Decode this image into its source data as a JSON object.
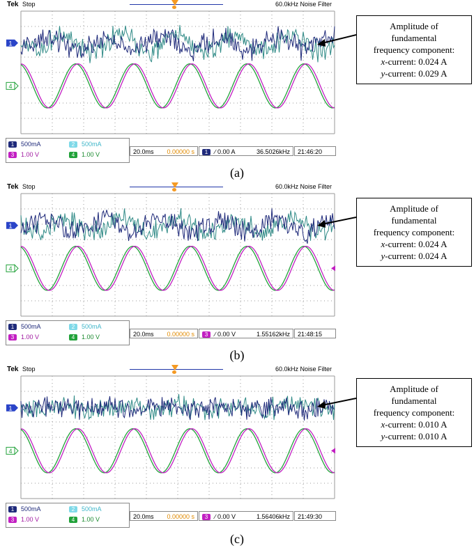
{
  "panels": [
    {
      "caption": "(a)",
      "topbar": {
        "brand": "Tek",
        "state": "Stop",
        "filter": "60.0kHz  Noise Filter"
      },
      "channels": {
        "ch1": {
          "badge": "1",
          "label": "500mA"
        },
        "ch2": {
          "badge": "2",
          "label": "500mA"
        },
        "ch3": {
          "badge": "3",
          "label": "1.00 V"
        },
        "ch4": {
          "badge": "4",
          "label": "1.00 V"
        }
      },
      "timebase": "20.0ms",
      "position": "0.00000 s",
      "trigger": {
        "badge": "1",
        "level": "∕ 0.00 A"
      },
      "frequency": "36.5026kHz",
      "time": "21:46:20",
      "markers": {
        "current": "1",
        "voltage": "4"
      },
      "callout": {
        "l1": "Amplitude of",
        "l2": "fundamental",
        "l3": "frequency component:",
        "x_prefix": "x",
        "x_text": "-current: 0.024 A",
        "y_prefix": "y",
        "y_text": "-current: 0.029 A"
      }
    },
    {
      "caption": "(b)",
      "topbar": {
        "brand": "Tek",
        "state": "Stop",
        "filter": "60.0kHz  Noise Filter"
      },
      "channels": {
        "ch1": {
          "badge": "1",
          "label": "500mA"
        },
        "ch2": {
          "badge": "2",
          "label": "500mA"
        },
        "ch3": {
          "badge": "3",
          "label": "1.00 V"
        },
        "ch4": {
          "badge": "4",
          "label": "1.00 V"
        }
      },
      "timebase": "20.0ms",
      "position": "0.00000 s",
      "trigger": {
        "badge": "3",
        "level": "∕ 0.00 V"
      },
      "frequency": "1.55162kHz",
      "time": "21:48:15",
      "markers": {
        "current": "1",
        "voltage": "4"
      },
      "callout": {
        "l1": "Amplitude of",
        "l2": "fundamental",
        "l3": "frequency component:",
        "x_prefix": "x",
        "x_text": "-current: 0.024 A",
        "y_prefix": "y",
        "y_text": "-current: 0.024 A"
      }
    },
    {
      "caption": "(c)",
      "topbar": {
        "brand": "Tek",
        "state": "Stop",
        "filter": "60.0kHz  Noise Filter"
      },
      "channels": {
        "ch1": {
          "badge": "1",
          "label": "500mA"
        },
        "ch2": {
          "badge": "2",
          "label": "500mA"
        },
        "ch3": {
          "badge": "3",
          "label": "1.00 V"
        },
        "ch4": {
          "badge": "4",
          "label": "1.00 V"
        }
      },
      "timebase": "20.0ms",
      "position": "0.00000 s",
      "trigger": {
        "badge": "3",
        "level": "∕ 0.00 V"
      },
      "frequency": "1.56406kHz",
      "time": "21:49:30",
      "markers": {
        "current": "1",
        "voltage": "4"
      },
      "callout": {
        "l1": "Amplitude of",
        "l2": "fundamental",
        "l3": "frequency component:",
        "x_prefix": "x",
        "x_text": "-current: 0.010 A",
        "y_prefix": "y",
        "y_text": "-current: 0.010 A"
      }
    }
  ],
  "colors": {
    "ch1": "#1f2a7a",
    "ch2": "#2f8a86",
    "ch3": "#c21fc2",
    "ch4": "#22a23a",
    "grid": "#9a9a9a",
    "trigger": "#f59a23"
  },
  "chart_data": [
    {
      "type": "line",
      "title": "",
      "series": [
        {
          "name": "",
          "channel": 1,
          "description": "noisy x-current",
          "fundamental_amplitude_A": 0.024
        },
        {
          "name": "",
          "channel": 2,
          "description": "noisy y-current",
          "fundamental_amplitude_A": 0.029
        },
        {
          "name": "",
          "channel": 3,
          "description": "sinusoidal voltage",
          "cycles_on_screen": 5.5
        },
        {
          "name": "",
          "channel": 4,
          "description": "sinusoidal voltage",
          "cycles_on_screen": 5.5
        }
      ],
      "grid": true
    },
    {
      "type": "line",
      "title": "",
      "series": [
        {
          "name": "",
          "channel": 1,
          "description": "noisy x-current",
          "fundamental_amplitude_A": 0.024
        },
        {
          "name": "",
          "channel": 2,
          "description": "noisy y-current",
          "fundamental_amplitude_A": 0.024
        },
        {
          "name": "",
          "channel": 3,
          "description": "sinusoidal voltage",
          "cycles_on_screen": 5.5
        },
        {
          "name": "",
          "channel": 4,
          "description": "sinusoidal voltage",
          "cycles_on_screen": 5.5
        }
      ],
      "grid": true
    },
    {
      "type": "line",
      "title": "",
      "series": [
        {
          "name": "",
          "channel": 1,
          "description": "noisy x-current",
          "fundamental_amplitude_A": 0.01
        },
        {
          "name": "",
          "channel": 2,
          "description": "noisy y-current",
          "fundamental_amplitude_A": 0.01
        },
        {
          "name": "",
          "channel": 3,
          "description": "sinusoidal voltage",
          "cycles_on_screen": 5.5
        },
        {
          "name": "",
          "channel": 4,
          "description": "sinusoidal voltage",
          "cycles_on_screen": 5.5
        }
      ],
      "grid": true
    }
  ]
}
